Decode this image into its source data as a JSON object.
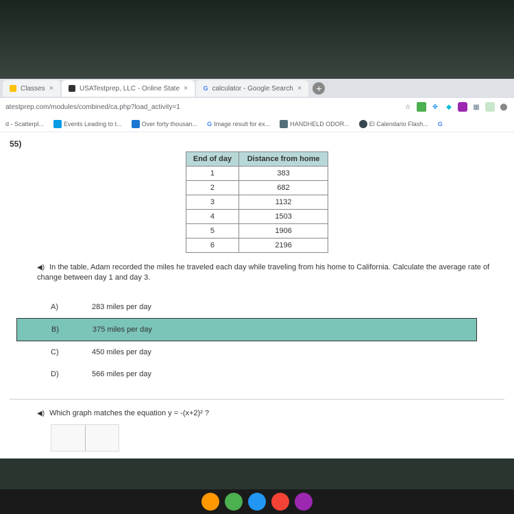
{
  "tabs": [
    {
      "icon_color": "#4285f4",
      "label": "Classes"
    },
    {
      "icon_color": "#333",
      "label": "USATestprep, LLC - Online State"
    },
    {
      "icon_color": "#4285f4",
      "label": "calculator - Google Search"
    }
  ],
  "url": "atestprep.com/modules/combined/ca.php?load_activity=1",
  "address_icons": [
    {
      "glyph": "☆",
      "color": "#5f6368"
    },
    {
      "glyph": "◧",
      "color": "#4CAF50"
    },
    {
      "glyph": "❄",
      "color": "#2196F3"
    },
    {
      "glyph": "◆",
      "color": "#00BCD4"
    },
    {
      "glyph": "◐",
      "color": "#9C27B0"
    },
    {
      "glyph": "▦",
      "color": "#607D8B"
    },
    {
      "glyph": "⬤",
      "color": "#FF9800"
    },
    {
      "glyph": "⋯",
      "color": "#888"
    }
  ],
  "bookmarks": [
    {
      "label": "d - Scatterpl...",
      "icon_color": "#888"
    },
    {
      "label": "Events Leading to t...",
      "icon_color": "#039be5"
    },
    {
      "label": "Over forty thousan...",
      "icon_color": "#1976d2"
    },
    {
      "label": "Image result for ex...",
      "icon_color": "#4285f4",
      "prefix": "G"
    },
    {
      "label": "HANDHELD ODOR...",
      "icon_color": "#546e7a"
    },
    {
      "label": "El Calendario Flash...",
      "icon_color": "#37474f"
    },
    {
      "label": "",
      "icon_color": "#4285f4",
      "prefix": "G"
    }
  ],
  "question": {
    "number": "55)",
    "table": {
      "headers": [
        "End of day",
        "Distance from home"
      ],
      "rows": [
        [
          "1",
          "383"
        ],
        [
          "2",
          "682"
        ],
        [
          "3",
          "1132"
        ],
        [
          "4",
          "1503"
        ],
        [
          "5",
          "1906"
        ],
        [
          "6",
          "2196"
        ]
      ]
    },
    "prompt": "In the table, Adam recorded the miles he traveled each day while traveling from his home to California. Calculate the average rate of change between day 1 and day 3.",
    "answers": [
      {
        "label": "A)",
        "text": "283 miles per day",
        "selected": false
      },
      {
        "label": "B)",
        "text": "375 miles per day",
        "selected": true
      },
      {
        "label": "C)",
        "text": "450 miles per day",
        "selected": false
      },
      {
        "label": "D)",
        "text": "566 miles per day",
        "selected": false
      }
    ],
    "next_prompt": "Which graph matches the equation y = -(x+2)² ?"
  },
  "taskbar_colors": [
    "#FF9800",
    "#4CAF50",
    "#2196F3",
    "#F44336",
    "#9C27B0"
  ]
}
